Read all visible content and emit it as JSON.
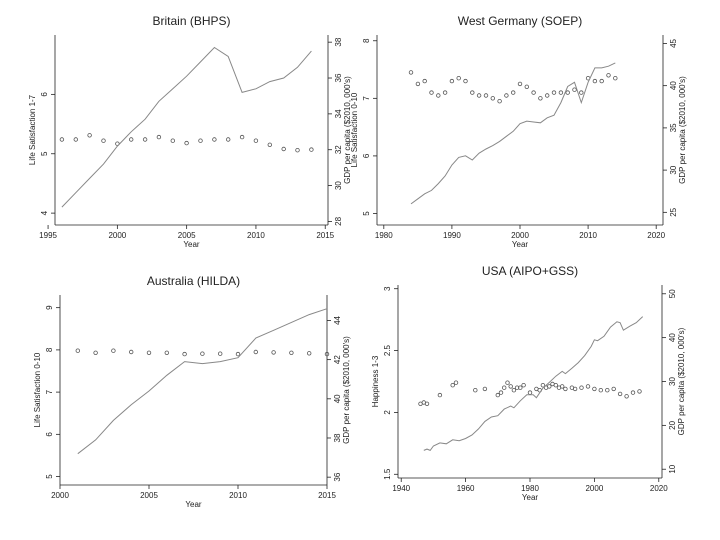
{
  "chart_data": [
    {
      "type": "line",
      "title": "Britain (BHPS)",
      "xlabel": "Year",
      "ylabel_left": "Life Satisfaction 1-7",
      "ylabel_right": "GDP per capita ($2010, 000's)",
      "xlim": [
        1995.5,
        2015.2
      ],
      "xticks": [
        1995,
        2000,
        2005,
        2010,
        2015
      ],
      "xtick_labels": [
        "1995",
        "2000",
        "2005",
        "2010",
        "2015"
      ],
      "ylim_left": [
        3.8,
        7.0
      ],
      "yticks_left": [
        4,
        5,
        6
      ],
      "ytick_labels_left": [
        "4",
        "5",
        "6"
      ],
      "ylim_right": [
        27.8,
        38.4
      ],
      "yticks_right": [
        28,
        30,
        32,
        34,
        36,
        38
      ],
      "ytick_labels_right": [
        "28",
        "30",
        "32",
        "34",
        "36",
        "38"
      ],
      "series": [
        {
          "name": "Life Satisfaction",
          "axis": "left",
          "style": "points",
          "x": [
            1996,
            1997,
            1998,
            1999,
            2000,
            2001,
            2002,
            2003,
            2004,
            2005,
            2006,
            2007,
            2008,
            2009,
            2010,
            2011,
            2012,
            2013,
            2014
          ],
          "y": [
            5.24,
            5.24,
            5.31,
            5.22,
            5.17,
            5.24,
            5.24,
            5.28,
            5.22,
            5.18,
            5.22,
            5.24,
            5.24,
            5.28,
            5.22,
            5.15,
            5.08,
            5.06,
            5.07
          ]
        },
        {
          "name": "GDP per capita",
          "axis": "right",
          "style": "line",
          "x": [
            1996,
            1997,
            1998,
            1999,
            2000,
            2001,
            2002,
            2003,
            2004,
            2005,
            2006,
            2007,
            2008,
            2009,
            2010,
            2011,
            2012,
            2013,
            2014
          ],
          "y": [
            28.8,
            29.6,
            30.4,
            31.2,
            32.2,
            33.0,
            33.7,
            34.7,
            35.4,
            36.1,
            36.9,
            37.7,
            37.2,
            35.2,
            35.4,
            35.8,
            36.0,
            36.6,
            37.5
          ]
        }
      ]
    },
    {
      "type": "line",
      "title": "West Germany (SOEP)",
      "xlabel": "Year",
      "ylabel_left": "Life Satisfaction 0-10",
      "ylabel_right": "GDP per capita ($2010, 000's)",
      "xlim": [
        1979,
        2021
      ],
      "xticks": [
        1980,
        1990,
        2000,
        2010,
        2020
      ],
      "xtick_labels": [
        "1980",
        "1990",
        "2000",
        "2010",
        "2020"
      ],
      "ylim_left": [
        4.8,
        8.1
      ],
      "yticks_left": [
        5,
        6,
        7,
        8
      ],
      "ytick_labels_left": [
        "5",
        "6",
        "7",
        "8"
      ],
      "ylim_right": [
        23.5,
        46
      ],
      "yticks_right": [
        25,
        30,
        35,
        40,
        45
      ],
      "ytick_labels_right": [
        "25",
        "30",
        "35",
        "40",
        "45"
      ],
      "series": [
        {
          "name": "Life Satisfaction",
          "axis": "left",
          "style": "points",
          "x": [
            1984,
            1985,
            1986,
            1987,
            1988,
            1989,
            1990,
            1991,
            1992,
            1993,
            1994,
            1995,
            1996,
            1997,
            1998,
            1999,
            2000,
            2001,
            2002,
            2003,
            2004,
            2005,
            2006,
            2007,
            2008,
            2009,
            2010,
            2011,
            2012,
            2013,
            2014
          ],
          "y": [
            7.45,
            7.25,
            7.3,
            7.1,
            7.05,
            7.1,
            7.3,
            7.35,
            7.3,
            7.1,
            7.05,
            7.05,
            7.0,
            6.95,
            7.05,
            7.1,
            7.25,
            7.2,
            7.1,
            7.0,
            7.05,
            7.1,
            7.1,
            7.1,
            7.15,
            7.1,
            7.35,
            7.3,
            7.3,
            7.4,
            7.35
          ]
        },
        {
          "name": "GDP per capita",
          "axis": "right",
          "style": "line",
          "x": [
            1984,
            1985,
            1986,
            1987,
            1988,
            1989,
            1990,
            1991,
            1992,
            1993,
            1994,
            1995,
            1996,
            1997,
            1998,
            1999,
            2000,
            2001,
            2002,
            2003,
            2004,
            2005,
            2006,
            2007,
            2008,
            2009,
            2010,
            2011,
            2012,
            2013,
            2014
          ],
          "y": [
            26.0,
            26.6,
            27.2,
            27.6,
            28.4,
            29.3,
            30.6,
            31.5,
            31.7,
            31.2,
            32.0,
            32.5,
            32.9,
            33.4,
            34.0,
            34.6,
            35.5,
            35.8,
            35.7,
            35.6,
            36.2,
            36.5,
            38.0,
            39.9,
            40.4,
            38.0,
            40.4,
            42.1,
            42.1,
            42.3,
            42.7
          ]
        }
      ]
    },
    {
      "type": "line",
      "title": "Australia (HILDA)",
      "xlabel": "Year",
      "ylabel_left": "Life Satisfaction 0-10",
      "ylabel_right": "GDP per capita ($2010, 000's)",
      "xlim": [
        2000,
        2015
      ],
      "xticks": [
        2000,
        2005,
        2010,
        2015
      ],
      "xtick_labels": [
        "2000",
        "2005",
        "2010",
        "2015"
      ],
      "ylim_left": [
        4.8,
        9.3
      ],
      "yticks_left": [
        5,
        6,
        7,
        8,
        9
      ],
      "ytick_labels_left": [
        "5",
        "6",
        "7",
        "8",
        "9"
      ],
      "ylim_right": [
        35.6,
        45.3
      ],
      "yticks_right": [
        36,
        38,
        40,
        42,
        44
      ],
      "ytick_labels_right": [
        "36",
        "38",
        "40",
        "42",
        "44"
      ],
      "series": [
        {
          "name": "Life Satisfaction",
          "axis": "left",
          "style": "points",
          "x": [
            2001,
            2002,
            2003,
            2004,
            2005,
            2006,
            2007,
            2008,
            2009,
            2010,
            2011,
            2012,
            2013,
            2014,
            2015
          ],
          "y": [
            7.98,
            7.93,
            7.98,
            7.95,
            7.93,
            7.93,
            7.9,
            7.91,
            7.91,
            7.9,
            7.95,
            7.94,
            7.93,
            7.92,
            7.9
          ]
        },
        {
          "name": "GDP per capita",
          "axis": "right",
          "style": "line",
          "x": [
            2001,
            2002,
            2003,
            2004,
            2005,
            2006,
            2007,
            2008,
            2009,
            2010,
            2011,
            2012,
            2013,
            2014,
            2015
          ],
          "y": [
            37.2,
            37.9,
            38.9,
            39.7,
            40.4,
            41.2,
            41.9,
            41.8,
            41.9,
            42.1,
            43.1,
            43.5,
            43.9,
            44.3,
            44.6
          ]
        }
      ]
    },
    {
      "type": "line",
      "title": "USA (AIPO+GSS)",
      "xlabel": "Year",
      "ylabel_left": "Happiness 1-3",
      "ylabel_right": "GDP per capita ($2010, 000's)",
      "xlim": [
        1939,
        2021
      ],
      "xticks": [
        1940,
        1960,
        1980,
        2000,
        2020
      ],
      "xtick_labels": [
        "1940",
        "1960",
        "1980",
        "2000",
        "2020"
      ],
      "ylim_left": [
        1.47,
        3.03
      ],
      "yticks_left": [
        1.5,
        2.0,
        2.5,
        3.0
      ],
      "ytick_labels_left": [
        "1.5",
        "2",
        "2.5",
        "3"
      ],
      "ylim_right": [
        8,
        52
      ],
      "yticks_right": [
        10,
        20,
        30,
        40,
        50
      ],
      "ytick_labels_right": [
        "10",
        "20",
        "30",
        "40",
        "50"
      ],
      "series": [
        {
          "name": "Happiness",
          "axis": "left",
          "style": "points",
          "x": [
            1946,
            1947,
            1948,
            1952,
            1956,
            1957,
            1963,
            1966,
            1970,
            1971,
            1972,
            1973,
            1974,
            1975,
            1976,
            1977,
            1978,
            1980,
            1982,
            1983,
            1984,
            1985,
            1986,
            1987,
            1988,
            1989,
            1990,
            1991,
            1993,
            1994,
            1996,
            1998,
            2000,
            2002,
            2004,
            2006,
            2008,
            2010,
            2012,
            2014
          ],
          "y": [
            2.07,
            2.08,
            2.07,
            2.14,
            2.22,
            2.24,
            2.18,
            2.19,
            2.14,
            2.16,
            2.2,
            2.24,
            2.21,
            2.18,
            2.2,
            2.2,
            2.22,
            2.16,
            2.19,
            2.18,
            2.22,
            2.2,
            2.21,
            2.23,
            2.22,
            2.2,
            2.21,
            2.19,
            2.2,
            2.19,
            2.2,
            2.21,
            2.19,
            2.18,
            2.18,
            2.19,
            2.15,
            2.13,
            2.16,
            2.17
          ]
        },
        {
          "name": "GDP per capita",
          "axis": "right",
          "style": "line",
          "x": [
            1947,
            1948,
            1949,
            1950,
            1952,
            1954,
            1956,
            1958,
            1960,
            1962,
            1964,
            1966,
            1968,
            1970,
            1972,
            1974,
            1975,
            1977,
            1979,
            1981,
            1982,
            1984,
            1986,
            1988,
            1990,
            1991,
            1993,
            1995,
            1997,
            1999,
            2000,
            2001,
            2003,
            2005,
            2007,
            2008,
            2009,
            2011,
            2013,
            2015
          ],
          "y": [
            14.3,
            14.6,
            14.3,
            15.3,
            16.0,
            15.8,
            16.7,
            16.5,
            17.0,
            17.8,
            19.2,
            20.9,
            21.9,
            22.2,
            23.7,
            24.4,
            24.0,
            25.6,
            27.0,
            27.0,
            26.3,
            28.5,
            29.8,
            31.2,
            32.3,
            31.8,
            33.0,
            34.3,
            35.9,
            38.0,
            39.5,
            39.3,
            40.3,
            42.4,
            43.6,
            43.4,
            41.7,
            42.6,
            43.4,
            44.8
          ]
        }
      ]
    }
  ]
}
